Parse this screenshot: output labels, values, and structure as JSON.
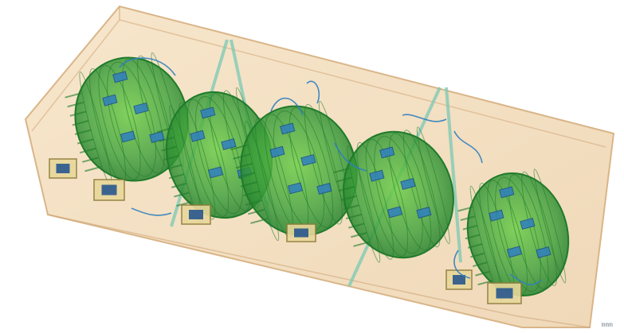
{
  "image": {
    "kind": "xray-scan",
    "corner_tag": "mmm"
  },
  "colors": {
    "background": "#ffffff",
    "container": "#efd2a8",
    "container_edge": "#d9b588",
    "organic": "#3da13a",
    "organic_dark": "#1f7a2a",
    "metal": "#2f7fbf",
    "metal_dark": "#1c4f8c",
    "strap": "#7bc9b4"
  },
  "icons": [
    "scanned-object-icon",
    "circuit-module-icon",
    "wire-icon"
  ]
}
